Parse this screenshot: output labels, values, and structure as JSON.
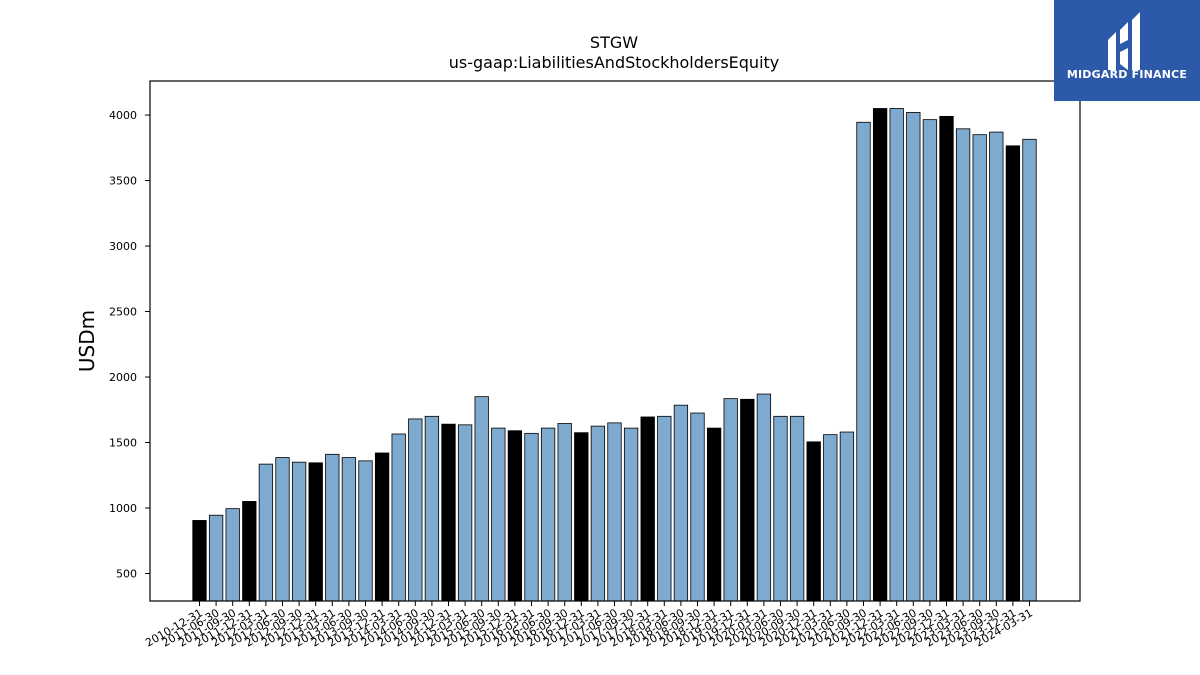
{
  "logo": {
    "text": "MIDGARD FINANCE",
    "bg_color": "#2c5aa8",
    "icon": "mf-monogram-icon"
  },
  "chart_data": {
    "type": "bar",
    "title": "STGW",
    "subtitle": "us-gaap:LiabilitiesAndStockholdersEquity",
    "xlabel": "",
    "ylabel": "USDm",
    "ylim": [
      290,
      4260
    ],
    "yticks": [
      500,
      1000,
      1500,
      2000,
      2500,
      3000,
      3500,
      4000
    ],
    "grid": false,
    "colors": {
      "quarter": "#7eaacf",
      "year_end": "#000000",
      "edge": "#000000"
    },
    "categories": [
      "2010-12-31",
      "2011-06-30",
      "2011-09-30",
      "2011-12-31",
      "2012-03-31",
      "2012-06-30",
      "2012-09-30",
      "2012-12-31",
      "2013-03-31",
      "2013-06-30",
      "2013-09-30",
      "2013-12-31",
      "2014-03-31",
      "2014-06-30",
      "2014-09-30",
      "2014-12-31",
      "2015-03-31",
      "2015-06-30",
      "2015-09-30",
      "2015-12-31",
      "2016-03-31",
      "2016-06-30",
      "2016-09-30",
      "2016-12-31",
      "2017-03-31",
      "2017-06-30",
      "2017-09-30",
      "2017-12-31",
      "2018-03-31",
      "2018-06-30",
      "2018-09-30",
      "2018-12-31",
      "2019-03-31",
      "2019-12-31",
      "2020-03-31",
      "2020-06-30",
      "2020-09-30",
      "2020-12-31",
      "2021-03-31",
      "2021-06-30",
      "2021-09-30",
      "2021-12-31",
      "2022-03-31",
      "2022-06-30",
      "2022-09-30",
      "2022-12-31",
      "2023-03-31",
      "2023-06-30",
      "2023-09-30",
      "2023-12-31",
      "2024-03-31"
    ],
    "values": [
      905,
      945,
      995,
      1050,
      1335,
      1385,
      1350,
      1345,
      1410,
      1385,
      1360,
      1420,
      1565,
      1680,
      1700,
      1640,
      1635,
      1850,
      1610,
      1590,
      1570,
      1610,
      1645,
      1575,
      1625,
      1650,
      1610,
      1695,
      1700,
      1785,
      1725,
      1610,
      1835,
      1830,
      1870,
      1700,
      1700,
      1505,
      1560,
      1580,
      3945,
      4050,
      4050,
      4020,
      3965,
      3990,
      3895,
      3850,
      3870,
      3765,
      3815
    ],
    "year_end": [
      true,
      false,
      false,
      true,
      false,
      false,
      false,
      true,
      false,
      false,
      false,
      true,
      false,
      false,
      false,
      true,
      false,
      false,
      false,
      true,
      false,
      false,
      false,
      true,
      false,
      false,
      false,
      true,
      false,
      false,
      false,
      true,
      false,
      true,
      false,
      false,
      false,
      true,
      false,
      false,
      false,
      true,
      false,
      false,
      false,
      true,
      false,
      false,
      false,
      true,
      false
    ]
  }
}
